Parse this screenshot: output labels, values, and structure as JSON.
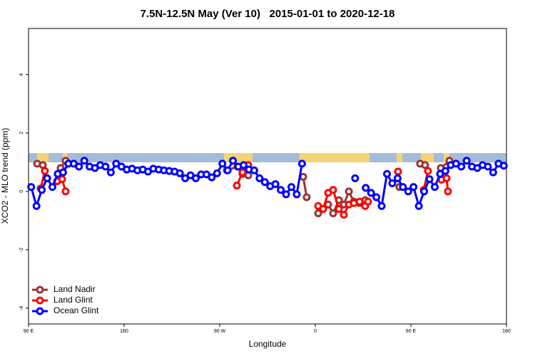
{
  "chart_data": {
    "type": "line",
    "title": "7.5N-12.5N May (Ver 10)   2015-01-01 to 2020-12-18",
    "x_label": "Longitude",
    "y_label": "XCO2 - MLO trend (ppm)",
    "xlim": [
      90,
      540
    ],
    "ylim": [
      -4.54,
      5.58
    ],
    "xticks": [
      {
        "value": 90,
        "label": "90 E"
      },
      180,
      {
        "value": 270,
        "label": "90 W"
      },
      {
        "value": 360,
        "label": "0"
      },
      {
        "value": 450,
        "label": "90 E"
      },
      {
        "value": 540,
        "label": "180"
      }
    ],
    "yticks": [
      -4,
      -2,
      0,
      2,
      4
    ],
    "legend": "bottom-left",
    "series": [
      {
        "name": "Land Nadir",
        "color": "#993333",
        "x": [
          98.1,
          103.4,
          null,
          120.2,
          124.9,
          null,
          276.7,
          286.8,
          291.5,
          296.9,
          null,
          348.6,
          351.9,
          null,
          362.7,
          367.4,
          372.1,
          376.8,
          382.2,
          386.9,
          391.6,
          396.3,
          401.7,
          407.0,
          null,
          439.2,
          null,
          458.7,
          463.4,
          null,
          478.2,
          486.3
        ],
        "values": [
          0.95,
          0.9,
          null,
          0.8,
          1.05,
          null,
          0.72,
          0.85,
          0.6,
          0.55,
          null,
          0.5,
          -0.2,
          null,
          -0.75,
          -0.6,
          -0.45,
          -0.75,
          -0.3,
          -0.45,
          0.0,
          -0.35,
          -0.4,
          -0.3,
          null,
          0.15,
          null,
          0.95,
          0.9,
          null,
          0.8,
          1.05
        ]
      },
      {
        "name": "Land Glint",
        "color": "#ff0000",
        "x": [
          101.4,
          105.4,
          null,
          116.9,
          121.6,
          124.9,
          null,
          286.1,
          291.5,
          296.9,
          null,
          362.7,
          367.4,
          372.1,
          376.8,
          382.2,
          386.9,
          391.6,
          396.3,
          401.7,
          407.0,
          409.7,
          null,
          437.9,
          null,
          462.1,
          466.1,
          null,
          478.9,
          483.6,
          484.9
        ],
        "values": [
          0.1,
          0.7,
          null,
          0.35,
          0.42,
          0.0,
          null,
          0.2,
          0.65,
          0.9,
          null,
          -0.5,
          -0.6,
          -0.05,
          0.05,
          -0.6,
          -0.8,
          -0.45,
          -0.4,
          -0.35,
          -0.5,
          -0.35,
          null,
          0.68,
          null,
          0.05,
          0.7,
          null,
          0.4,
          0.45,
          0.0
        ]
      },
      {
        "name": "Ocean Glint",
        "color": "#0000ff",
        "x": [
          92.5,
          97.5,
          102.5,
          107.5,
          112.5,
          117.5,
          122.5,
          127.5,
          132.5,
          137.5,
          142.5,
          147.5,
          152.5,
          157.5,
          162.5,
          167.5,
          172.5,
          177.5,
          182.5,
          187.5,
          192.5,
          197.5,
          202.5,
          207.5,
          212.5,
          217.5,
          222.5,
          227.5,
          232.5,
          237.5,
          242.5,
          247.5,
          252.5,
          257.5,
          262.5,
          267.5,
          272.5,
          277.5,
          282.5,
          287.5,
          292.5,
          297.5,
          302.5,
          307.5,
          312.5,
          317.5,
          322.5,
          327.5,
          332.5,
          337.5,
          342.5,
          347.5,
          null,
          397.5,
          null,
          407.5,
          412.5,
          417.5,
          422.5,
          427.5,
          432.5,
          437.5,
          442.5,
          447.5,
          452.5,
          457.5,
          462.5,
          467.5,
          472.5,
          477.5,
          482.5,
          487.5,
          492.5,
          497.5,
          502.5,
          507.5,
          512.5,
          517.5,
          522.5,
          527.5,
          532.5,
          537.5
        ],
        "values": [
          0.15,
          -0.5,
          0.05,
          0.45,
          0.15,
          0.6,
          0.65,
          0.95,
          0.95,
          0.85,
          1.05,
          0.85,
          0.8,
          0.9,
          0.85,
          0.65,
          0.95,
          0.85,
          0.75,
          0.78,
          0.72,
          0.75,
          0.68,
          0.78,
          0.75,
          0.72,
          0.7,
          0.68,
          0.62,
          0.45,
          0.55,
          0.45,
          0.58,
          0.58,
          0.48,
          0.62,
          0.95,
          0.72,
          1.05,
          0.85,
          0.9,
          0.75,
          0.72,
          0.45,
          0.32,
          0.18,
          0.25,
          0.05,
          -0.1,
          0.15,
          -0.1,
          0.95,
          null,
          0.45,
          null,
          0.12,
          -0.05,
          -0.2,
          -0.5,
          0.6,
          0.28,
          0.45,
          0.15,
          0,
          0.15,
          -0.5,
          0,
          0.42,
          0.15,
          0.6,
          0.7,
          0.9,
          0.95,
          0.85,
          1.05,
          0.85,
          0.8,
          0.9,
          0.85,
          0.65,
          0.95,
          0.88
        ]
      }
    ]
  }
}
